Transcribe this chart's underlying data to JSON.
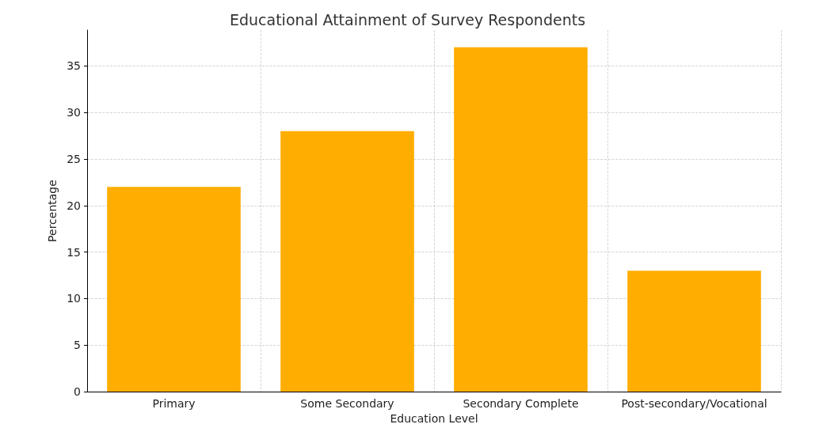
{
  "chart_data": {
    "type": "bar",
    "title": "Educational Attainment of Survey Respondents",
    "xlabel": "Education Level",
    "ylabel": "Percentage",
    "categories": [
      "Primary",
      "Some Secondary",
      "Secondary Complete",
      "Post-secondary/Vocational"
    ],
    "values": [
      22,
      28,
      37,
      13
    ],
    "color": "#ffad00",
    "ylim": [
      0,
      38.85
    ],
    "yticks": [
      0,
      5,
      10,
      15,
      20,
      25,
      30,
      35
    ],
    "grid": true
  }
}
